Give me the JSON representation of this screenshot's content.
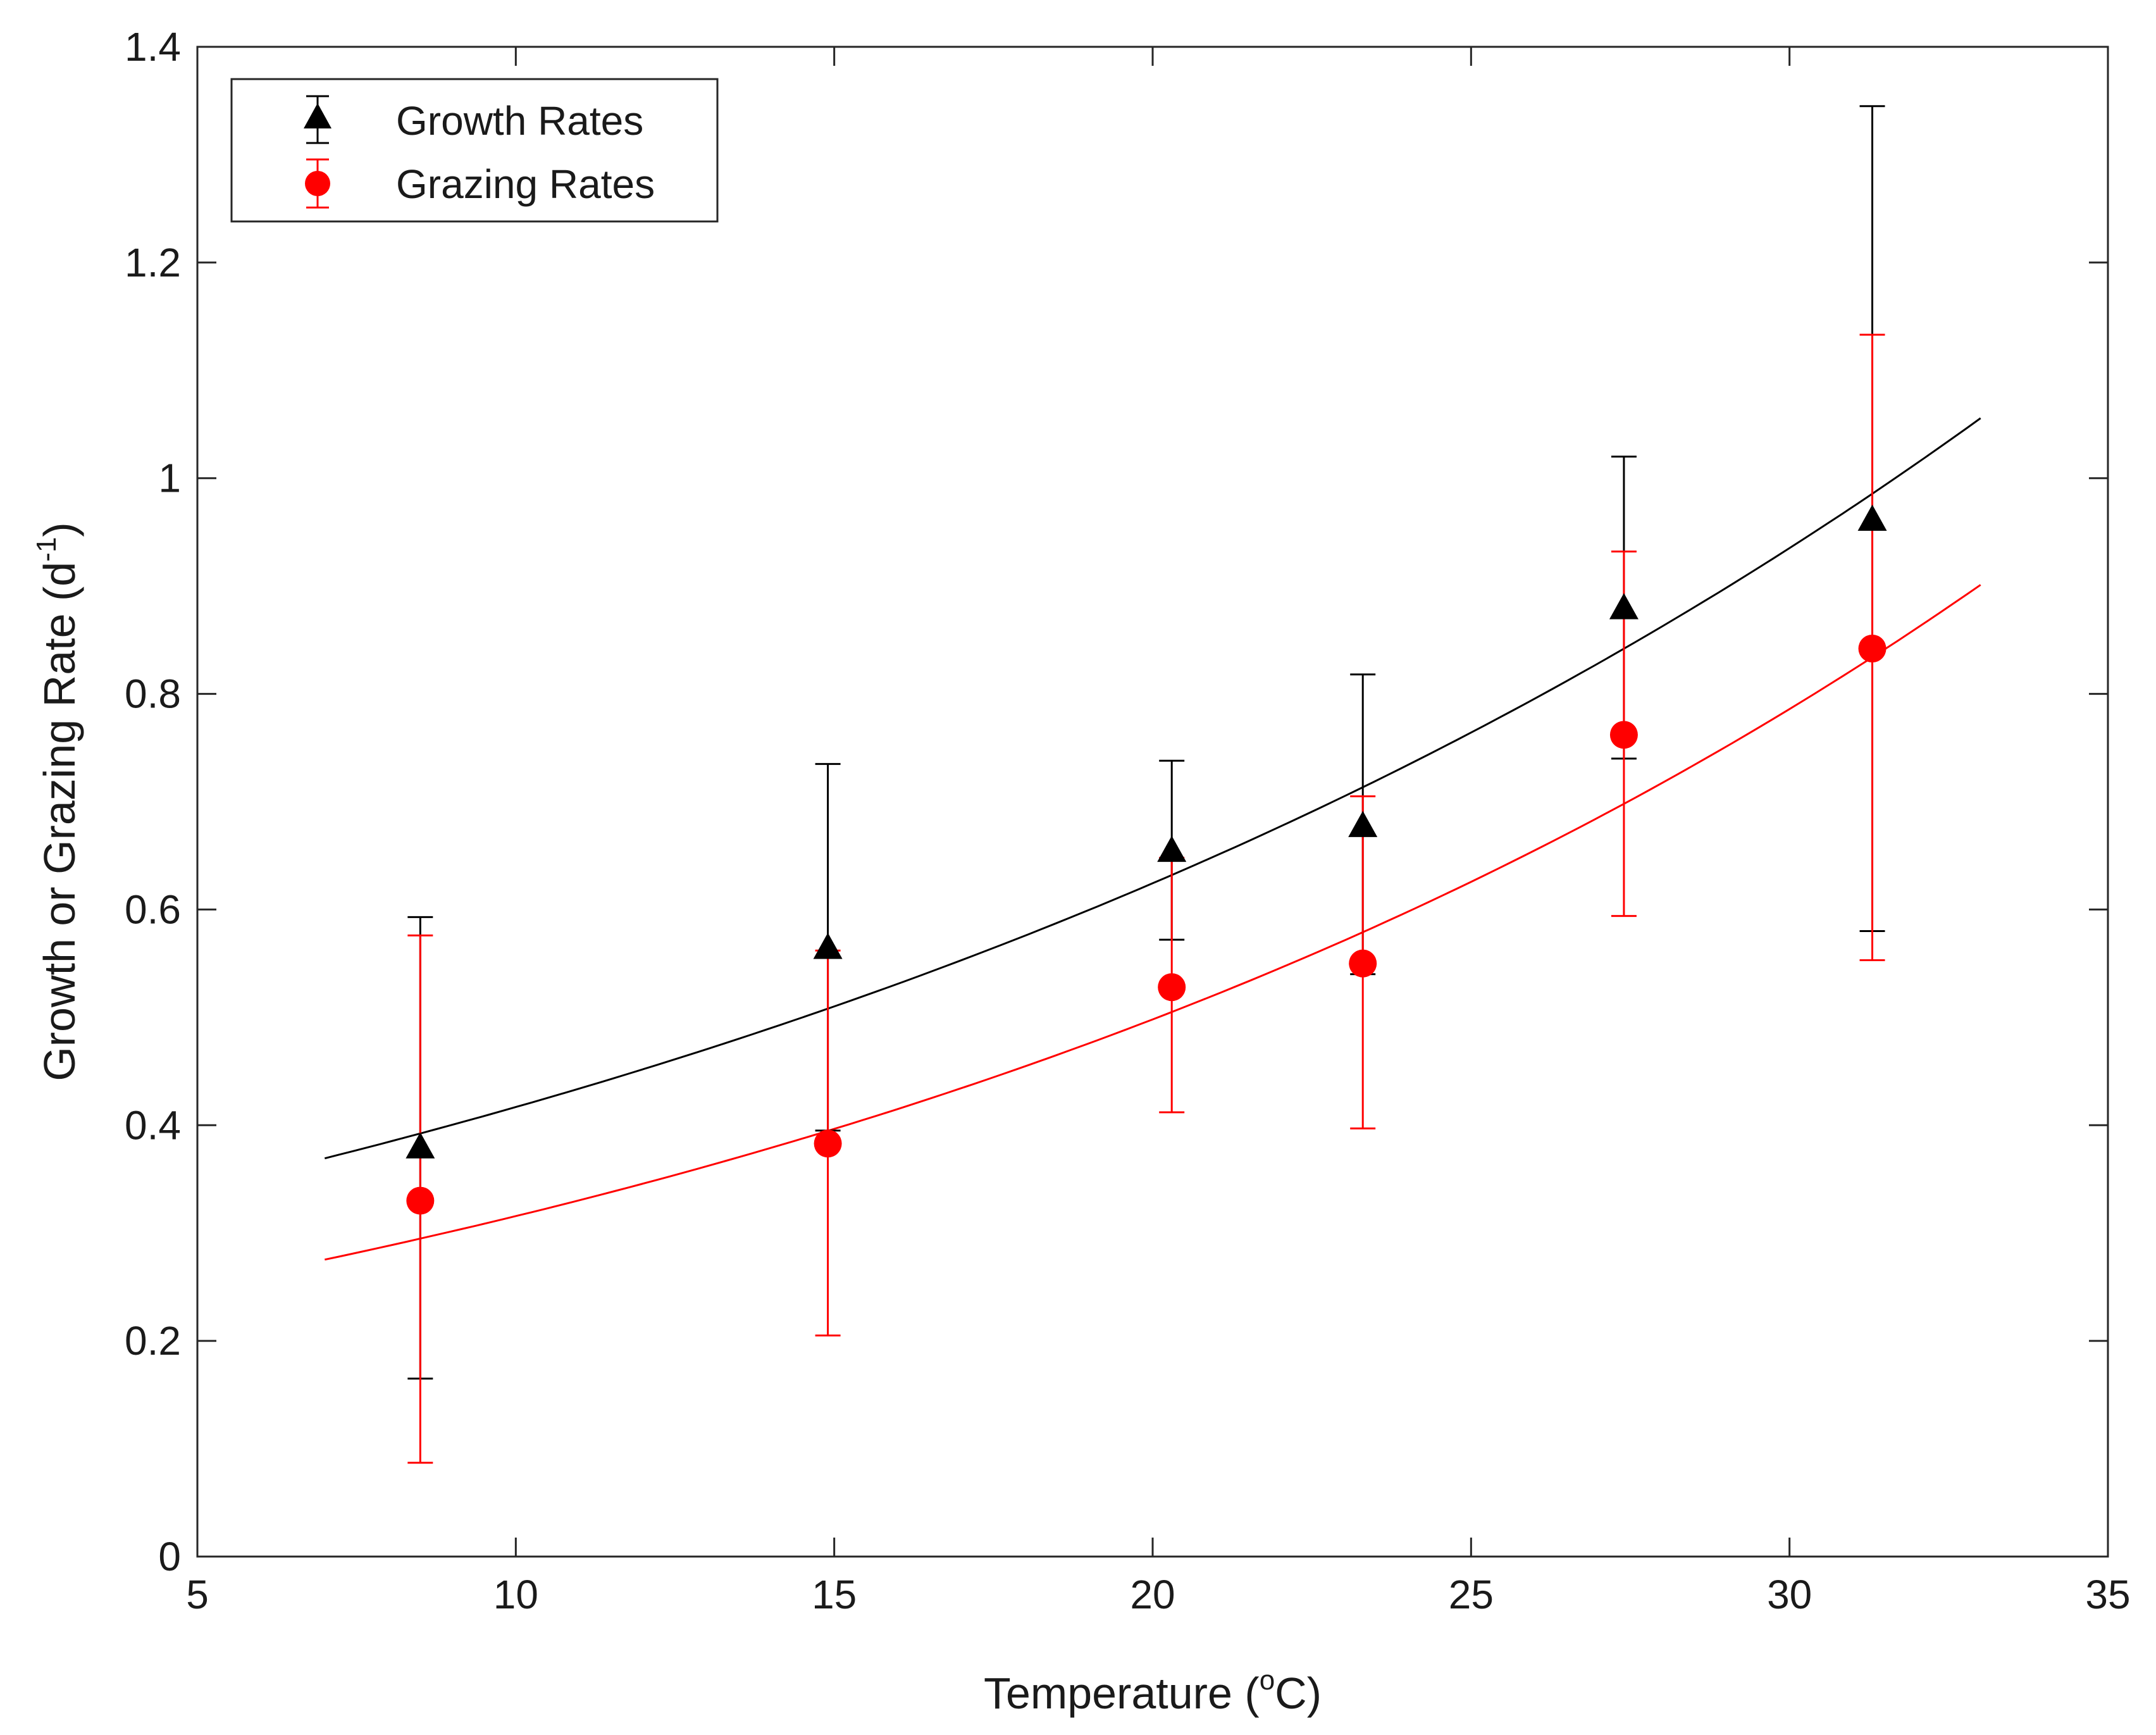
{
  "chart_data": {
    "type": "scatter",
    "title": "",
    "xlabel": {
      "prefix": "Temperature (",
      "superscript": "o",
      "suffix": "C)"
    },
    "ylabel": {
      "prefix": "Growth or Grazing Rate (d",
      "superscript": "-1",
      "suffix": ")"
    },
    "xlim": [
      5,
      35
    ],
    "ylim": [
      0,
      1.4
    ],
    "xticks": [
      5,
      10,
      15,
      20,
      25,
      30,
      35
    ],
    "xtick_labels": [
      "5",
      "10",
      "15",
      "20",
      "25",
      "30",
      "35"
    ],
    "yticks": [
      0,
      0.2,
      0.4,
      0.6,
      0.8,
      1.0,
      1.2,
      1.4
    ],
    "ytick_labels": [
      "0",
      "0.2",
      "0.4",
      "0.6",
      "0.8",
      "1",
      "1.2",
      "1.4"
    ],
    "grid": false,
    "legend_position": "top-left",
    "series": [
      {
        "name": "Growth Rates",
        "marker": "triangle",
        "color": "#000000",
        "x": [
          8.5,
          14.9,
          20.3,
          23.3,
          27.4,
          31.3
        ],
        "y": [
          0.38,
          0.565,
          0.655,
          0.678,
          0.88,
          0.962
        ],
        "err_low": [
          0.165,
          0.395,
          0.572,
          0.54,
          0.74,
          0.58
        ],
        "err_high": [
          0.593,
          0.735,
          0.738,
          0.818,
          1.02,
          1.345
        ],
        "fit": {
          "x_start": 7,
          "x_end": 33,
          "a": 0.2783,
          "b": 0.0404
        }
      },
      {
        "name": "Grazing Rates",
        "marker": "circle",
        "color": "#ff0000",
        "x": [
          8.5,
          14.9,
          20.3,
          23.3,
          27.4,
          31.3
        ],
        "y": [
          0.33,
          0.383,
          0.528,
          0.55,
          0.762,
          0.842
        ],
        "err_low": [
          0.087,
          0.205,
          0.412,
          0.397,
          0.594,
          0.553
        ],
        "err_high": [
          0.576,
          0.562,
          0.648,
          0.705,
          0.932,
          1.133
        ],
        "fit": {
          "x_start": 7,
          "x_end": 33,
          "a": 0.2001,
          "b": 0.0456
        }
      }
    ]
  }
}
